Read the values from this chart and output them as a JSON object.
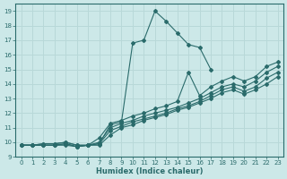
{
  "xlabel": "Humidex (Indice chaleur)",
  "xlim": [
    -0.5,
    23.5
  ],
  "ylim": [
    9,
    19.5
  ],
  "xticks": [
    0,
    1,
    2,
    3,
    4,
    5,
    6,
    7,
    8,
    9,
    10,
    11,
    12,
    13,
    14,
    15,
    16,
    17,
    18,
    19,
    20,
    21,
    22,
    23
  ],
  "yticks": [
    9,
    10,
    11,
    12,
    13,
    14,
    15,
    16,
    17,
    18,
    19
  ],
  "bg_color": "#cce8e8",
  "line_color": "#2a6b6b",
  "grid_color": "#b8d8d8",
  "lines": [
    {
      "x": [
        0,
        1,
        2,
        3,
        4,
        5,
        6,
        7,
        8,
        9,
        10,
        11,
        12,
        13,
        14,
        15,
        16,
        17,
        18,
        19,
        20,
        21,
        22,
        23
      ],
      "y": [
        9.8,
        9.8,
        9.9,
        9.9,
        10.0,
        9.8,
        9.8,
        9.9,
        11.2,
        11.4,
        16.8,
        17.0,
        19.0,
        18.3,
        17.5,
        16.7,
        16.5,
        15.0,
        null,
        null,
        null,
        null,
        null,
        null
      ]
    },
    {
      "x": [
        0,
        1,
        2,
        3,
        4,
        5,
        6,
        7,
        8,
        9,
        10,
        11,
        12,
        13,
        14,
        15,
        16,
        17,
        18,
        19,
        20,
        21,
        22,
        23
      ],
      "y": [
        9.8,
        9.8,
        9.9,
        9.9,
        10.0,
        9.8,
        9.8,
        10.3,
        11.3,
        11.5,
        11.8,
        12.0,
        12.3,
        12.5,
        12.8,
        14.8,
        13.2,
        13.8,
        14.2,
        14.5,
        14.2,
        14.5,
        15.2,
        15.5
      ]
    },
    {
      "x": [
        0,
        1,
        2,
        3,
        4,
        5,
        6,
        7,
        8,
        9,
        10,
        11,
        12,
        13,
        14,
        15,
        16,
        17,
        18,
        19,
        20,
        21,
        22,
        23
      ],
      "y": [
        9.8,
        9.8,
        9.8,
        9.8,
        9.9,
        9.7,
        9.8,
        10.0,
        11.0,
        11.3,
        11.5,
        11.8,
        12.0,
        12.2,
        12.4,
        12.7,
        13.0,
        13.4,
        13.8,
        14.0,
        13.8,
        14.2,
        14.8,
        15.2
      ]
    },
    {
      "x": [
        0,
        1,
        2,
        3,
        4,
        5,
        6,
        7,
        8,
        9,
        10,
        11,
        12,
        13,
        14,
        15,
        16,
        17,
        18,
        19,
        20,
        21,
        22,
        23
      ],
      "y": [
        9.8,
        9.8,
        9.8,
        9.8,
        9.9,
        9.7,
        9.8,
        9.9,
        10.8,
        11.1,
        11.4,
        11.6,
        11.8,
        12.0,
        12.3,
        12.5,
        12.8,
        13.2,
        13.6,
        13.8,
        13.5,
        13.8,
        14.4,
        14.8
      ]
    },
    {
      "x": [
        0,
        1,
        2,
        3,
        4,
        5,
        6,
        7,
        8,
        9,
        10,
        11,
        12,
        13,
        14,
        15,
        16,
        17,
        18,
        19,
        20,
        21,
        22,
        23
      ],
      "y": [
        9.8,
        9.8,
        9.8,
        9.8,
        9.8,
        9.7,
        9.8,
        9.8,
        10.5,
        11.0,
        11.2,
        11.5,
        11.7,
        11.9,
        12.2,
        12.4,
        12.7,
        13.0,
        13.4,
        13.6,
        13.3,
        13.6,
        14.0,
        14.5
      ]
    }
  ]
}
